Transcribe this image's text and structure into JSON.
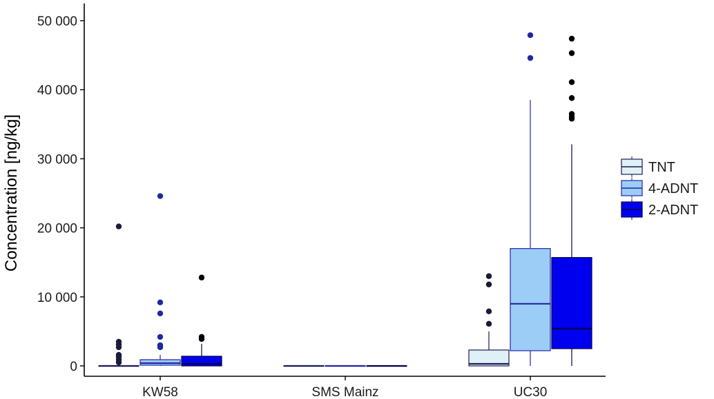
{
  "chart_data": {
    "type": "box",
    "ylabel": "Concentration [ng/kg]",
    "xlabel": "",
    "ylim": [
      -1500,
      52500
    ],
    "yticks": [
      0,
      10000,
      20000,
      30000,
      40000,
      50000
    ],
    "ytick_labels": [
      "0",
      "10 000",
      "20 000",
      "30 000",
      "40 000",
      "50 000"
    ],
    "categories": [
      "KW58",
      "SMS Mainz",
      "UC30"
    ],
    "grid": false,
    "legend_position": "right",
    "series": [
      {
        "name": "TNT",
        "fill": "#dff0f7",
        "line": "#1a1a55",
        "boxes": [
          {
            "min": 0,
            "q1": 0,
            "median": 0,
            "q3": 0,
            "max": 0,
            "outliers": [
              20200,
              3500,
              3100,
              2700,
              1600,
              1300,
              900,
              500
            ]
          },
          {
            "min": 0,
            "q1": 0,
            "median": 0,
            "q3": 0,
            "max": 0,
            "outliers": []
          },
          {
            "min": 0,
            "q1": 0,
            "median": 300,
            "q3": 2300,
            "max": 5000,
            "outliers": [
              13000,
              11800,
              7900,
              6100
            ]
          }
        ]
      },
      {
        "name": "4-ADNT",
        "fill": "#9ccdf7",
        "line": "#2323a8",
        "boxes": [
          {
            "min": 0,
            "q1": 100,
            "median": 400,
            "q3": 900,
            "max": 1600,
            "outliers": [
              24600,
              9200,
              7600,
              4200,
              3000,
              2700
            ]
          },
          {
            "min": 0,
            "q1": 0,
            "median": 0,
            "q3": 0,
            "max": 0,
            "outliers": []
          },
          {
            "min": 0,
            "q1": 2200,
            "median": 9000,
            "q3": 17000,
            "max": 38500,
            "outliers": [
              47900,
              44600
            ]
          }
        ]
      },
      {
        "name": "2-ADNT",
        "fill": "#0000ee",
        "line": "#00004a",
        "boxes": [
          {
            "min": 0,
            "q1": 0,
            "median": 300,
            "q3": 1400,
            "max": 3200,
            "outliers": [
              12800,
              4200,
              3900
            ]
          },
          {
            "min": 0,
            "q1": 0,
            "median": 0,
            "q3": 0,
            "max": 0,
            "outliers": []
          },
          {
            "min": 0,
            "q1": 2500,
            "median": 5400,
            "q3": 15700,
            "max": 32100,
            "outliers": [
              47400,
              45300,
              41100,
              38800,
              36500,
              36100,
              35800
            ]
          }
        ]
      }
    ],
    "colors": {
      "axis": "#000000",
      "outlier_tnt": "#1a1a3a",
      "outlier_4adnt": "#1c2aa0",
      "outlier_2adnt": "#000000"
    }
  }
}
